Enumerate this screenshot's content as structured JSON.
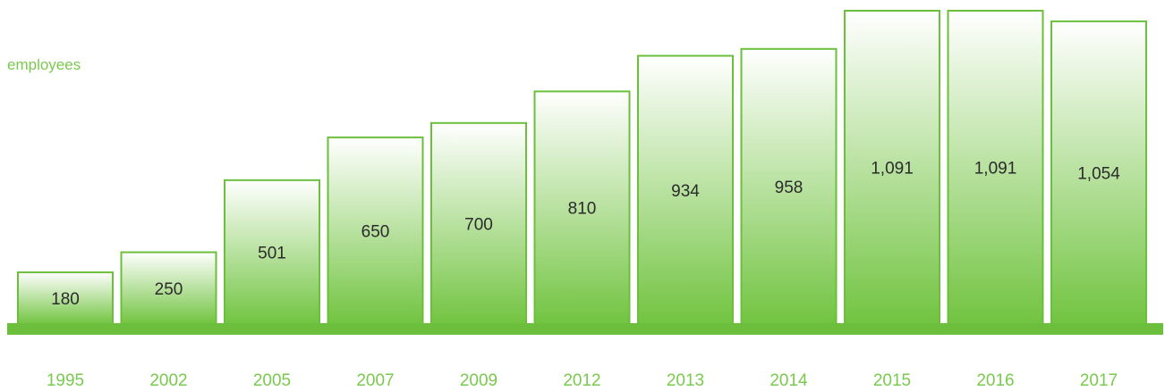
{
  "chart_data": {
    "type": "bar",
    "title": "",
    "xlabel": "",
    "ylabel": "employees",
    "categories": [
      "1995",
      "2002",
      "2005",
      "2007",
      "2009",
      "2012",
      "2013",
      "2014",
      "2015",
      "2016",
      "2017"
    ],
    "values": [
      180,
      250,
      501,
      650,
      700,
      810,
      934,
      958,
      1091,
      1091,
      1054
    ],
    "value_labels": [
      "180",
      "250",
      "501",
      "650",
      "700",
      "810",
      "934",
      "958",
      "1,091",
      "1,091",
      "1,054"
    ],
    "ylim": [
      0,
      1091
    ],
    "grid": false,
    "legend": "none"
  },
  "colors": {
    "bar_top": "#ffffff",
    "bar_bottom": "#72c441",
    "bar_stroke": "#6cbf3c",
    "baseline": "#6cbf3c",
    "label_green": "#7ac94f",
    "value_text": "#2b2b2b"
  }
}
